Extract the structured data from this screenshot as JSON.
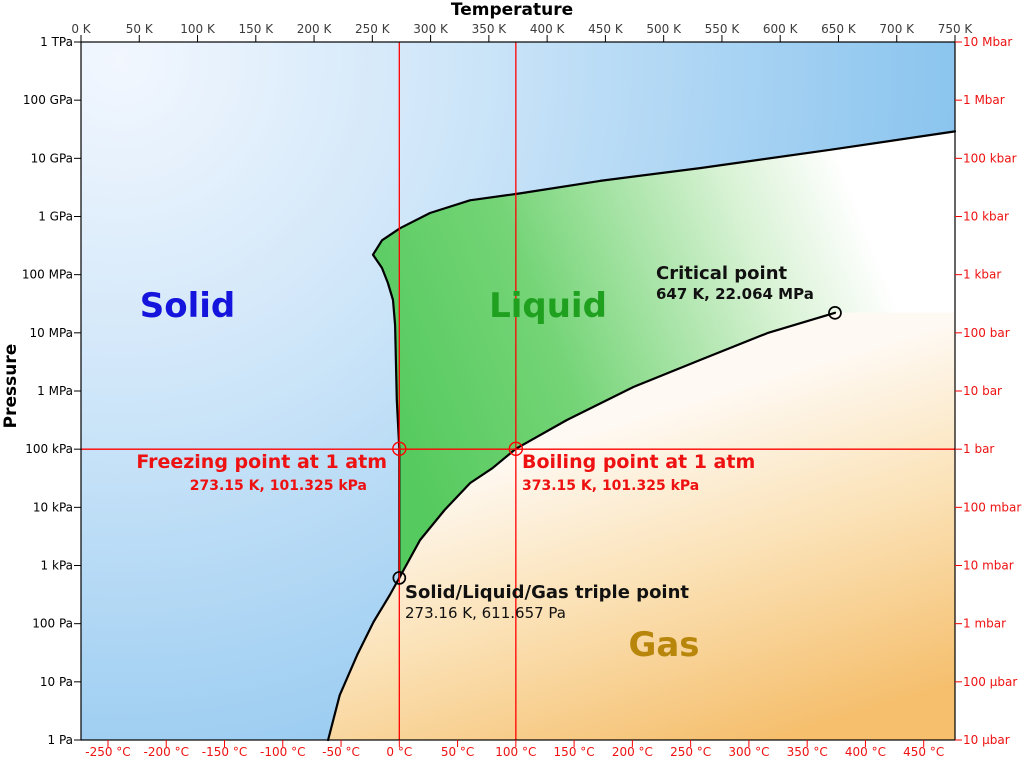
{
  "chart_data": {
    "type": "area",
    "description": "Pressure-temperature phase diagram of water",
    "x_axis_top": {
      "label": "Temperature",
      "unit": "K",
      "values": [
        0,
        50,
        100,
        150,
        200,
        250,
        300,
        350,
        400,
        450,
        500,
        550,
        600,
        650,
        700,
        750
      ],
      "ticks": [
        "0 K",
        "50 K",
        "100 K",
        "150 K",
        "200 K",
        "250 K",
        "300 K",
        "350 K",
        "400 K",
        "450 K",
        "500 K",
        "550 K",
        "600 K",
        "650 K",
        "700 K",
        "750 K"
      ]
    },
    "x_axis_bottom": {
      "unit": "°C",
      "values": [
        -250,
        -200,
        -150,
        -100,
        -50,
        0,
        50,
        100,
        150,
        200,
        250,
        300,
        350,
        400,
        450
      ],
      "ticks": [
        "-250 °C",
        "-200 °C",
        "-150 °C",
        "-100 °C",
        "-50 °C",
        "0 °C",
        "50 °C",
        "100 °C",
        "150 °C",
        "200 °C",
        "250 °C",
        "300 °C",
        "350 °C",
        "400 °C",
        "450 °C"
      ]
    },
    "y_axis_left": {
      "label": "Pressure",
      "scale": "log",
      "range_pa": [
        1,
        1000000000000
      ],
      "ticks": [
        "1 TPa",
        "100 GPa",
        "10 GPa",
        "1 GPa",
        "100 MPa",
        "10 MPa",
        "1 MPa",
        "100 kPa",
        "10 kPa",
        "1 kPa",
        "100 Pa",
        "10 Pa",
        "1 Pa"
      ]
    },
    "y_axis_right": {
      "unit": "bar",
      "ticks": [
        "10 Mbar",
        "1 Mbar",
        "100 kbar",
        "10 kbar",
        "1 kbar",
        "100 bar",
        "10 bar",
        "1 bar",
        "100 mbar",
        "10 mbar",
        "1 mbar",
        "100 µbar",
        "10 µbar"
      ]
    },
    "regions": [
      {
        "name": "Solid",
        "label_color": "#1414dd"
      },
      {
        "name": "Liquid",
        "label_color": "#1fa11f"
      },
      {
        "name": "Gas",
        "label_color": "#b8860b"
      }
    ],
    "key_points": [
      {
        "id": "critical",
        "label": "Critical point",
        "value_text": "647 K, 22.064 MPa",
        "T_K": 647,
        "P_Pa": 22064000
      },
      {
        "id": "freezing",
        "label": "Freezing point at 1 atm",
        "value_text": "273.15 K, 101.325 kPa",
        "T_K": 273.15,
        "P_Pa": 101325
      },
      {
        "id": "boiling",
        "label": "Boiling point at 1 atm",
        "value_text": "373.15 K, 101.325 kPa",
        "T_K": 373.15,
        "P_Pa": 101325
      },
      {
        "id": "triple",
        "label": "Solid/Liquid/Gas triple point",
        "value_text": "273.16 K, 611.657 Pa",
        "T_K": 273.16,
        "P_Pa": 611.657
      }
    ],
    "boundaries": {
      "sublimation": [
        [
          212,
          1
        ],
        [
          222,
          5.9
        ],
        [
          237,
          29
        ],
        [
          251,
          107
        ],
        [
          265,
          311
        ],
        [
          273.16,
          611.657
        ]
      ],
      "vaporization": [
        [
          273.16,
          611.657
        ],
        [
          291,
          2740
        ],
        [
          312,
          8990
        ],
        [
          334,
          26200
        ],
        [
          353,
          47000
        ],
        [
          373.15,
          101325
        ],
        [
          417,
          317000
        ],
        [
          474,
          1170000
        ],
        [
          531,
          3400000
        ],
        [
          589,
          9900000
        ],
        [
          647,
          22064000
        ]
      ],
      "melting": [
        [
          273.16,
          611.657
        ],
        [
          273.15,
          101325
        ],
        [
          271,
          700000
        ],
        [
          269.5,
          13600000
        ],
        [
          267.7,
          36700000
        ],
        [
          263.4,
          72000000
        ],
        [
          258.3,
          130000000
        ],
        [
          250.6,
          220000000
        ],
        [
          258.3,
          390000000
        ],
        [
          273.8,
          630000000
        ],
        [
          299.5,
          1150000000
        ],
        [
          333.8,
          1900000000
        ],
        [
          376.7,
          2500000000
        ],
        [
          445.4,
          4100000000
        ],
        [
          531.2,
          6800000000
        ],
        [
          642.8,
          14000000000
        ],
        [
          750,
          29000000000
        ]
      ]
    },
    "reference_lines": {
      "pressure_1_bar_pa": 100000,
      "temperature_0c_k": 273.15,
      "temperature_100c_k": 373.15
    },
    "colors": {
      "boundary": "#000000",
      "reference": "#ff0000",
      "red_text": "#ee1111",
      "tick_text_top": "#3c3c3c",
      "solid_light": "#f2f7fe",
      "solid_mid": "#cfe6f9",
      "solid_dark": "#7bbdec",
      "liquid_strong": "#55ca5e",
      "liquid_mid": "#74d476",
      "liquid_pale": "#d8f2d4",
      "gas_light": "#fef9f2",
      "gas_mid": "#fbe2b7",
      "gas_strong": "#f5bf6e",
      "background": "#ffffff"
    }
  }
}
